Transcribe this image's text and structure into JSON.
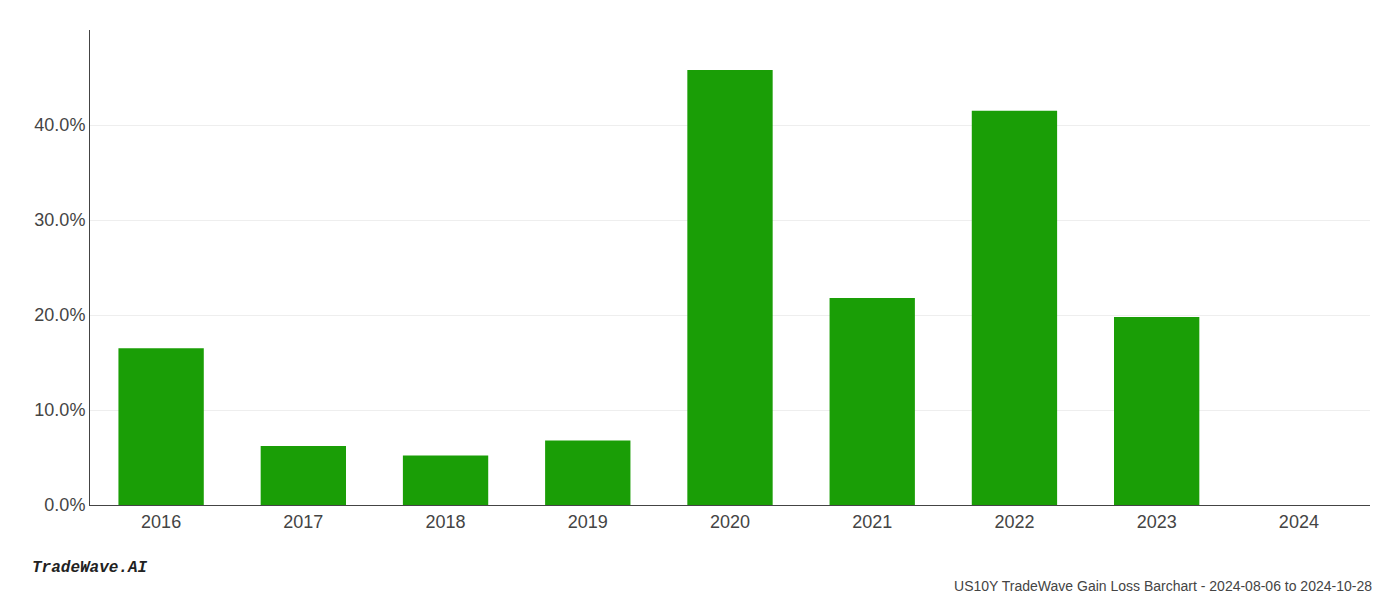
{
  "chart_data": {
    "type": "bar",
    "title": "US10Y TradeWave Gain Loss Barchart - 2024-08-06 to 2024-10-28",
    "annotations": [
      "TradeWave.AI"
    ],
    "categories": [
      "2016",
      "2017",
      "2018",
      "2019",
      "2020",
      "2021",
      "2022",
      "2023",
      "2024"
    ],
    "values": [
      0.165,
      0.062,
      0.052,
      0.068,
      0.458,
      0.218,
      0.415,
      0.198,
      0.0
    ],
    "color": "#1a9e06",
    "ylim": [
      0,
      0.5
    ],
    "yticks": [
      {
        "value": 0.0,
        "label": "0.0%"
      },
      {
        "value": 0.1,
        "label": "10.0%"
      },
      {
        "value": 0.2,
        "label": "20.0%"
      },
      {
        "value": 0.3,
        "label": "30.0%"
      },
      {
        "value": 0.4,
        "label": "40.0%"
      }
    ],
    "grid": true
  }
}
